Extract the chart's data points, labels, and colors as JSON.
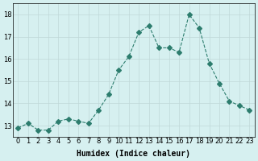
{
  "x": [
    0,
    1,
    2,
    3,
    4,
    5,
    6,
    7,
    8,
    9,
    10,
    11,
    12,
    13,
    14,
    15,
    16,
    17,
    18,
    19,
    20,
    21,
    22,
    23
  ],
  "y": [
    12.9,
    13.1,
    12.8,
    12.8,
    13.2,
    13.3,
    13.2,
    13.1,
    13.7,
    14.4,
    15.5,
    16.1,
    17.2,
    17.5,
    16.5,
    16.5,
    16.3,
    18.0,
    17.4,
    15.8,
    14.9,
    14.1,
    13.9,
    13.7
  ],
  "line_color": "#2d7d6e",
  "marker": "D",
  "marker_size": 3,
  "line_width": 0.8,
  "bg_color": "#d6f0f0",
  "grid_color": "#c0d8d8",
  "xlabel": "Humidex (Indice chaleur)",
  "ylim": [
    12.5,
    18.5
  ],
  "xlim": [
    -0.5,
    23.5
  ],
  "yticks": [
    13,
    14,
    15,
    16,
    17,
    18
  ],
  "xticks": [
    0,
    1,
    2,
    3,
    4,
    5,
    6,
    7,
    8,
    9,
    10,
    11,
    12,
    13,
    14,
    15,
    16,
    17,
    18,
    19,
    20,
    21,
    22,
    23
  ],
  "title_fontsize": 7,
  "label_fontsize": 7,
  "tick_fontsize": 6
}
